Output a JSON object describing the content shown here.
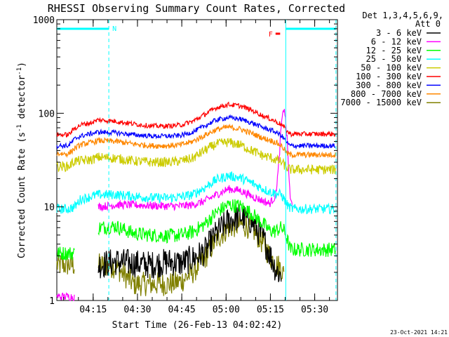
{
  "chart_data": {
    "type": "line",
    "title": "RHESSI Observing Summary Count Rates, Corrected",
    "xlabel": "Start Time (26-Feb-13 04:02:42)",
    "ylabel": "Corrected Count Rate (s⁻¹ detector⁻¹)",
    "ylabel_parts": {
      "main": "Corrected Count Rate (s",
      "exp1": "-1",
      "mid": " detector",
      "exp2": "-1",
      "end": ")"
    },
    "yscale": "log",
    "xlim_minutes": [
      0,
      95
    ],
    "ylim": [
      1,
      1000
    ],
    "y_ticks": [
      {
        "value": 1,
        "label": "1"
      },
      {
        "value": 10,
        "label": "10"
      },
      {
        "value": 100,
        "label": "100"
      },
      {
        "value": 1000,
        "label": "1000"
      }
    ],
    "x_ticks": [
      {
        "minute": 12.3,
        "label": "04:15"
      },
      {
        "minute": 27.3,
        "label": "04:30"
      },
      {
        "minute": 42.3,
        "label": "04:45"
      },
      {
        "minute": 57.3,
        "label": "05:00"
      },
      {
        "minute": 72.3,
        "label": "05:15"
      },
      {
        "minute": 87.3,
        "label": "05:30"
      }
    ],
    "legend": {
      "header1": "Det 1,3,4,5,6,9,",
      "header2": "Att 0",
      "position": "right"
    },
    "annotations": {
      "night_label": "N",
      "flare_label": "F",
      "night_start_minute": 17.6,
      "night_end_minute": 77.5,
      "night2_end_minute": 94.5,
      "flare_start_minute": 75,
      "flare_end_minute": 77.5
    },
    "series": [
      {
        "name": "3 - 6 keV",
        "color": "#000000",
        "times": [
          0,
          12,
          14,
          20,
          26,
          32,
          38,
          42,
          46,
          50,
          54,
          58,
          62,
          66,
          70,
          72,
          74,
          76,
          77,
          78,
          79,
          80,
          94.5
        ],
        "values": [
          null,
          null,
          2.4,
          2.6,
          2.5,
          2.4,
          2.6,
          2.5,
          2.8,
          3.3,
          5.2,
          7.0,
          8.0,
          7.0,
          4.5,
          3.2,
          2.2,
          1.8,
          null,
          null,
          null,
          null,
          null
        ]
      },
      {
        "name": "6 - 12 keV",
        "color": "#ff00ff",
        "times": [
          0,
          6,
          8,
          12,
          14,
          20,
          26,
          32,
          38,
          42,
          46,
          50,
          54,
          58,
          62,
          66,
          70,
          72,
          74,
          75,
          76,
          77,
          78,
          79,
          80,
          94.5
        ],
        "values": [
          1.1,
          1.1,
          null,
          null,
          10,
          10.5,
          10.5,
          10.3,
          10.2,
          10.2,
          10.5,
          11.5,
          13.5,
          15.5,
          15,
          13,
          11.5,
          10.8,
          13,
          25,
          75,
          120,
          50,
          12,
          10,
          null
        ]
      },
      {
        "name": "12 - 25 keV",
        "color": "#00ff00",
        "times": [
          0,
          6,
          8,
          12,
          14,
          20,
          26,
          32,
          38,
          42,
          46,
          50,
          54,
          58,
          62,
          66,
          70,
          72,
          74,
          76,
          77,
          78,
          79,
          80,
          94.5
        ],
        "values": [
          3.2,
          3.2,
          null,
          null,
          6,
          6.2,
          5.2,
          5.0,
          4.9,
          5.0,
          5.4,
          6.5,
          8.7,
          10.5,
          10.2,
          8.5,
          6.5,
          5.6,
          5.5,
          6,
          5.5,
          4.5,
          3.5,
          3.5,
          3.5
        ]
      },
      {
        "name": "25 - 50 keV",
        "color": "#00ffff",
        "times": [
          0,
          4,
          6,
          8,
          12,
          14,
          20,
          26,
          32,
          38,
          42,
          46,
          50,
          54,
          58,
          62,
          66,
          70,
          72,
          74,
          76,
          77,
          78,
          79,
          80,
          94.5
        ],
        "values": [
          9.5,
          9.5,
          10,
          12,
          13,
          13.5,
          13.5,
          13,
          12.5,
          12.5,
          12.8,
          13.5,
          16,
          19.5,
          21.5,
          20.5,
          18,
          15.5,
          14.5,
          14,
          13.5,
          12,
          10.5,
          9.8,
          9.5,
          9.5
        ]
      },
      {
        "name": "50 - 100 keV",
        "color": "#cccc00",
        "times": [
          0,
          4,
          6,
          8,
          12,
          14,
          20,
          26,
          32,
          38,
          42,
          46,
          50,
          54,
          58,
          62,
          66,
          70,
          72,
          74,
          76,
          77,
          78,
          79,
          80,
          94.5
        ],
        "values": [
          27,
          27,
          31,
          31,
          32,
          34,
          33,
          31,
          30,
          30,
          31,
          33,
          40,
          47,
          49,
          46,
          40,
          35,
          34,
          32,
          30,
          28,
          26,
          25,
          25,
          25
        ]
      },
      {
        "name": "100 - 300 keV",
        "color": "#ff0000",
        "times": [
          0,
          4,
          6,
          8,
          12,
          14,
          20,
          26,
          32,
          38,
          42,
          46,
          50,
          54,
          58,
          62,
          66,
          70,
          72,
          74,
          76,
          77,
          78,
          79,
          80,
          94.5
        ],
        "values": [
          59,
          59,
          69,
          75,
          80,
          85,
          82,
          77,
          73,
          73,
          75,
          82,
          97,
          115,
          124,
          120,
          108,
          93,
          88,
          82,
          76,
          70,
          64,
          60,
          60,
          60
        ]
      },
      {
        "name": "300 - 800 keV",
        "color": "#0000ff",
        "times": [
          0,
          4,
          6,
          8,
          12,
          14,
          20,
          26,
          32,
          38,
          42,
          46,
          50,
          54,
          58,
          62,
          66,
          70,
          72,
          74,
          76,
          77,
          78,
          79,
          80,
          94.5
        ],
        "values": [
          45,
          45,
          53,
          57,
          61,
          63,
          62,
          59,
          57,
          57,
          58,
          63,
          73,
          85,
          90,
          87,
          79,
          70,
          67,
          63,
          58,
          53,
          48,
          45,
          45,
          45
        ]
      },
      {
        "name": "800 - 7000 keV",
        "color": "#ff8800",
        "times": [
          0,
          4,
          6,
          8,
          12,
          14,
          20,
          26,
          32,
          38,
          42,
          46,
          50,
          54,
          58,
          62,
          66,
          70,
          72,
          74,
          76,
          77,
          78,
          79,
          80,
          94.5
        ],
        "values": [
          37,
          37,
          42,
          46,
          49,
          51,
          50,
          47,
          45,
          45,
          46,
          50,
          58,
          67,
          71,
          68,
          61,
          54,
          52,
          49,
          45,
          41,
          37,
          36,
          36,
          36
        ]
      },
      {
        "name": "7000 - 15000 keV",
        "color": "#808000",
        "times": [
          0,
          6,
          8,
          12,
          14,
          20,
          26,
          32,
          38,
          42,
          46,
          50,
          54,
          58,
          62,
          66,
          70,
          72,
          74,
          76,
          77,
          78,
          79,
          80,
          94.5
        ],
        "values": [
          2.4,
          2.4,
          null,
          null,
          2.4,
          2.3,
          1.5,
          1.5,
          1.5,
          1.6,
          2.0,
          2.8,
          4.5,
          6.0,
          6.5,
          6.0,
          4.0,
          3.0,
          2.5,
          2.2,
          1.8,
          null,
          null,
          null,
          2.4
        ]
      }
    ]
  },
  "footer": {
    "timestamp": "23-Oct-2021 14:21"
  }
}
